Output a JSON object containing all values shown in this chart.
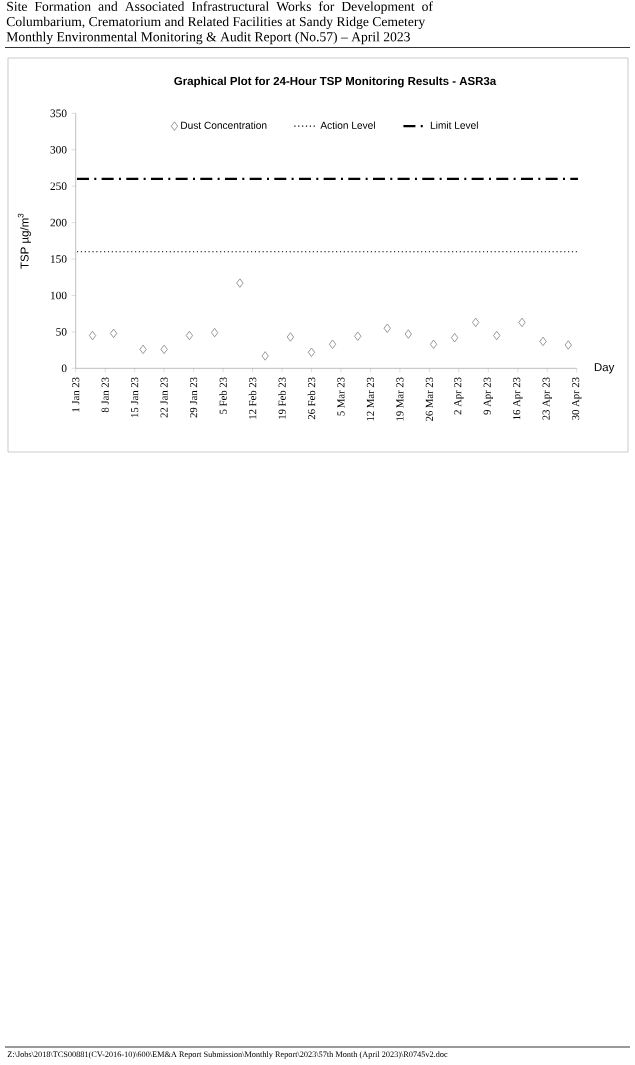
{
  "chart_data": {
    "type": "scatter",
    "title": "Graphical Plot for 24-Hour TSP Monitoring Results - ASR3a",
    "xlabel": "Day",
    "ylabel": "TSP µg/m$^{3}$",
    "x": [
      "2023-01-05",
      "2023-01-10",
      "2023-01-17",
      "2023-01-22",
      "2023-01-28",
      "2023-02-03",
      "2023-02-09",
      "2023-02-15",
      "2023-02-21",
      "2023-02-26",
      "2023-03-03",
      "2023-03-09",
      "2023-03-16",
      "2023-03-21",
      "2023-03-27",
      "2023-04-01",
      "2023-04-06",
      "2023-04-11",
      "2023-04-17",
      "2023-04-22",
      "2023-04-28"
    ],
    "series": [
      {
        "name": "Dust Concentration",
        "color": "#7f7f7f",
        "values": [
          45,
          48,
          26,
          26,
          45,
          49,
          117,
          17,
          43,
          22,
          33,
          44,
          55,
          47,
          33,
          42,
          63,
          45,
          63,
          37,
          32
        ]
      }
    ],
    "marker": "diamond",
    "xlim": [
      "2023-01-01",
      "2023-04-30"
    ],
    "xticks": [
      {
        "value": "2023-01-01",
        "label": "1 Jan 23"
      },
      {
        "value": "2023-01-08",
        "label": "8 Jan 23"
      },
      {
        "value": "2023-01-15",
        "label": "15 Jan 23"
      },
      {
        "value": "2023-01-22",
        "label": "22 Jan 23"
      },
      {
        "value": "2023-01-29",
        "label": "29 Jan 23"
      },
      {
        "value": "2023-02-05",
        "label": "5 Feb 23"
      },
      {
        "value": "2023-02-12",
        "label": "12 Feb 23"
      },
      {
        "value": "2023-02-19",
        "label": "19 Feb 23"
      },
      {
        "value": "2023-02-26",
        "label": "26 Feb 23"
      },
      {
        "value": "2023-03-05",
        "label": "5 Mar 23"
      },
      {
        "value": "2023-03-12",
        "label": "12 Mar 23"
      },
      {
        "value": "2023-03-19",
        "label": "19 Mar 23"
      },
      {
        "value": "2023-03-26",
        "label": "26 Mar 23"
      },
      {
        "value": "2023-04-02",
        "label": "2 Apr 23"
      },
      {
        "value": "2023-04-09",
        "label": "9 Apr 23"
      },
      {
        "value": "2023-04-16",
        "label": "16 Apr 23"
      },
      {
        "value": "2023-04-23",
        "label": "23 Apr 23"
      },
      {
        "value": "2023-04-30",
        "label": "30 Apr 23"
      }
    ],
    "ylim": [
      0,
      350
    ],
    "yticks": [
      0,
      50,
      100,
      150,
      200,
      250,
      300,
      350
    ],
    "ref_lines": [
      {
        "axis": "y",
        "value": 160,
        "label": "Action Level",
        "color": "#000000",
        "line_style": "dotted"
      },
      {
        "axis": "y",
        "value": 260,
        "label": "Limit Level",
        "color": "#000000",
        "line_style": "dashdot"
      }
    ],
    "legend": "top",
    "annotations": [
      "Site Formation and Associated Infrastructural Works for Development of Columbarium, Crematorium and Related Facilities at Sandy Ridge Cemetery",
      "Monthly Environmental Monitoring & Audit Report (No.57) – April 2023",
      "Z:\\Jobs\\2018\\TCS00881(CV-2016-10)\\600\\EM&A Report Submission\\Monthly Report\\2023\\57th Month (April 2023)\\R0745v2.doc"
    ]
  }
}
